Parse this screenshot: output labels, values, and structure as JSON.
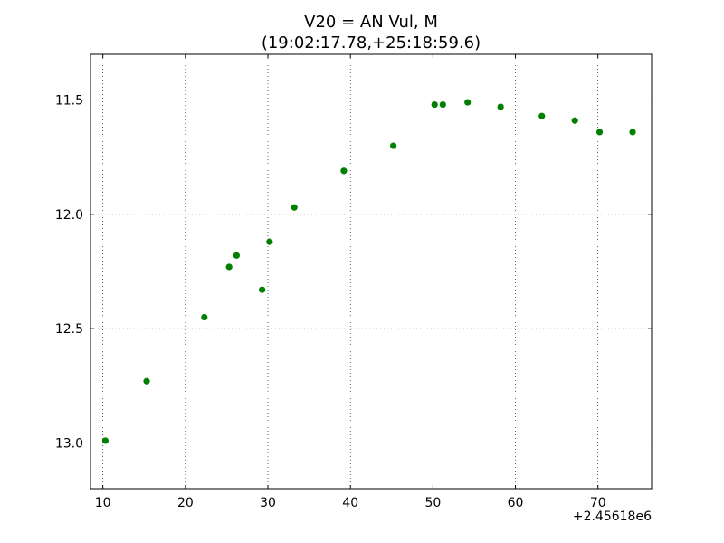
{
  "chart_data": {
    "type": "scatter",
    "title": "V20 = AN Vul, M",
    "subtitle": "(19:02:17.78,+25:18:59.6)",
    "xlabel": "",
    "ylabel": "",
    "x_offset_label": "+2.45618e6",
    "xlim": [
      8.5,
      76.5
    ],
    "ylim": [
      13.2,
      11.3
    ],
    "y_inverted": true,
    "grid": true,
    "x_ticks": [
      10,
      20,
      30,
      40,
      50,
      60,
      70
    ],
    "x_tick_labels": [
      "10",
      "20",
      "30",
      "40",
      "50",
      "60",
      "70"
    ],
    "y_ticks": [
      11.5,
      12.0,
      12.5,
      13.0
    ],
    "y_tick_labels": [
      "11.5",
      "12.0",
      "12.5",
      "13.0"
    ],
    "marker_color": "#008000",
    "points": [
      {
        "x": 10.3,
        "y": 12.99
      },
      {
        "x": 15.3,
        "y": 12.73
      },
      {
        "x": 22.3,
        "y": 12.45
      },
      {
        "x": 25.3,
        "y": 12.23
      },
      {
        "x": 26.2,
        "y": 12.18
      },
      {
        "x": 29.3,
        "y": 12.33
      },
      {
        "x": 30.2,
        "y": 12.12
      },
      {
        "x": 33.2,
        "y": 11.97
      },
      {
        "x": 39.2,
        "y": 11.81
      },
      {
        "x": 45.2,
        "y": 11.7
      },
      {
        "x": 50.2,
        "y": 11.52
      },
      {
        "x": 51.2,
        "y": 11.52
      },
      {
        "x": 54.2,
        "y": 11.51
      },
      {
        "x": 58.2,
        "y": 11.53
      },
      {
        "x": 63.2,
        "y": 11.57
      },
      {
        "x": 67.2,
        "y": 11.59
      },
      {
        "x": 70.2,
        "y": 11.64
      },
      {
        "x": 74.2,
        "y": 11.64
      }
    ]
  }
}
